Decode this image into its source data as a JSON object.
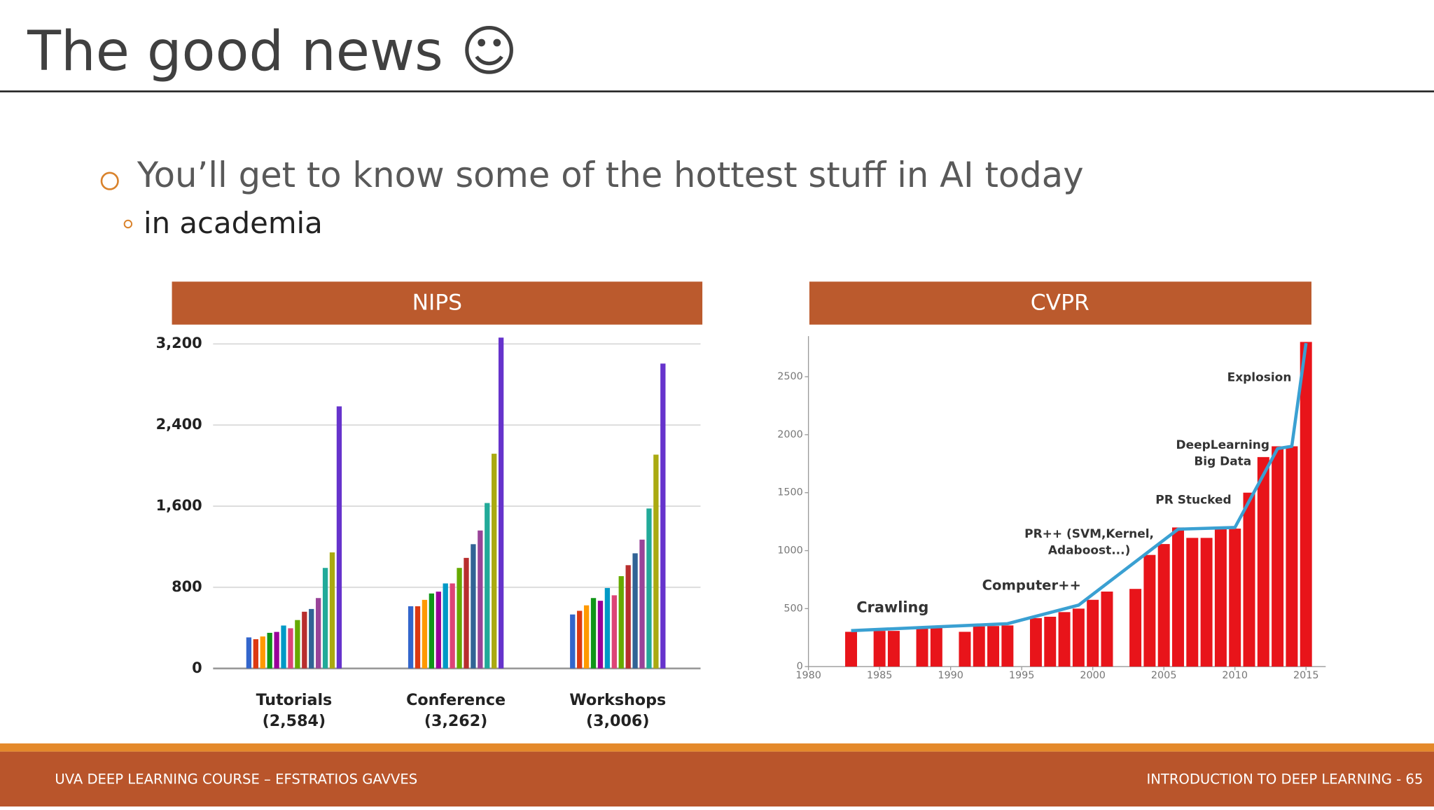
{
  "header": {
    "title": "The good news ☺"
  },
  "bullets": [
    {
      "text": "You’ll get to know some of the hottest stuff in AI today",
      "sub": [
        "in academia"
      ]
    }
  ],
  "panels": [
    "NIPS",
    "CVPR"
  ],
  "chart_data": [
    {
      "type": "bar",
      "categories": [
        "Tutorials",
        "Conference",
        "Workshops"
      ],
      "category_notes": [
        "(2,584)",
        "(3,262)",
        "(3,006)"
      ],
      "ylim": [
        0,
        3300
      ],
      "yticks": [
        0,
        {
          "value": 800,
          "label": "800"
        },
        {
          "value": 1600,
          "label": "1,600"
        },
        {
          "value": 2400,
          "label": "2,400"
        },
        {
          "value": 3200,
          "label": "3,200"
        }
      ],
      "grid": true,
      "series": [
        {
          "color": "#3366cc",
          "values": [
            306,
            613,
            532
          ]
        },
        {
          "color": "#dc3912",
          "values": [
            288,
            613,
            568
          ]
        },
        {
          "color": "#ff9900",
          "values": [
            315,
            676,
            622
          ]
        },
        {
          "color": "#109618",
          "values": [
            351,
            739,
            694
          ]
        },
        {
          "color": "#990099",
          "values": [
            360,
            757,
            667
          ]
        },
        {
          "color": "#0099c6",
          "values": [
            423,
            838,
            793
          ]
        },
        {
          "color": "#dd4477",
          "values": [
            396,
            838,
            721
          ]
        },
        {
          "color": "#66aa00",
          "values": [
            477,
            991,
            910
          ]
        },
        {
          "color": "#b82e2e",
          "values": [
            559,
            1090,
            1018
          ]
        },
        {
          "color": "#316395",
          "values": [
            586,
            1225,
            1135
          ]
        },
        {
          "color": "#994499",
          "values": [
            694,
            1360,
            1270
          ]
        },
        {
          "color": "#22aa99",
          "values": [
            991,
            1631,
            1577
          ]
        },
        {
          "color": "#aaaa11",
          "values": [
            1144,
            2117,
            2108
          ]
        },
        {
          "color": "#6633cc",
          "values": [
            2584,
            3262,
            3006
          ]
        }
      ]
    },
    {
      "type": "bar",
      "xlim": [
        1980,
        2016
      ],
      "ylim": [
        0,
        2850
      ],
      "xticks": [
        1980,
        1985,
        1990,
        1995,
        2000,
        2005,
        2010,
        2015
      ],
      "yticks": [
        0,
        500,
        1000,
        1500,
        2000,
        2500
      ],
      "grid": false,
      "series": [
        {
          "color": "#e8141a",
          "x": [
            1983,
            1985,
            1986,
            1988,
            1989,
            1991,
            1992,
            1993,
            1994,
            1996,
            1997,
            1998,
            1999,
            2000,
            2001,
            2003,
            2004,
            2005,
            2006,
            2007,
            2008,
            2009,
            2010,
            2011,
            2012,
            2013,
            2014,
            2015
          ],
          "values": [
            300,
            308,
            308,
            340,
            340,
            300,
            347,
            350,
            355,
            418,
            430,
            470,
            500,
            576,
            647,
            670,
            963,
            1057,
            1200,
            1110,
            1110,
            1190,
            1190,
            1500,
            1807,
            1900,
            1900,
            2800
          ]
        },
        {
          "color": "#3aa0d2",
          "type": "line",
          "x": [
            1983,
            1994,
            1999,
            2006,
            2010,
            2013,
            2014,
            2015
          ],
          "values": [
            310,
            370,
            530,
            1185,
            1200,
            1880,
            1900,
            2790
          ]
        }
      ],
      "annotations": [
        {
          "lines": [
            "Crawling"
          ]
        },
        {
          "lines": [
            "Computer++"
          ]
        },
        {
          "lines": [
            "PR++ (SVM,Kernel,",
            "Adaboost...)"
          ]
        },
        {
          "lines": [
            "PR Stucked"
          ]
        },
        {
          "lines": [
            "DeepLearning",
            "Big Data"
          ]
        },
        {
          "lines": [
            "Explosion"
          ]
        }
      ]
    }
  ],
  "footer": {
    "left": "UVA DEEP LEARNING COURSE – EFSTRATIOS GAVVES",
    "right": "INTRODUCTION TO DEEP LEARNING - 65"
  }
}
